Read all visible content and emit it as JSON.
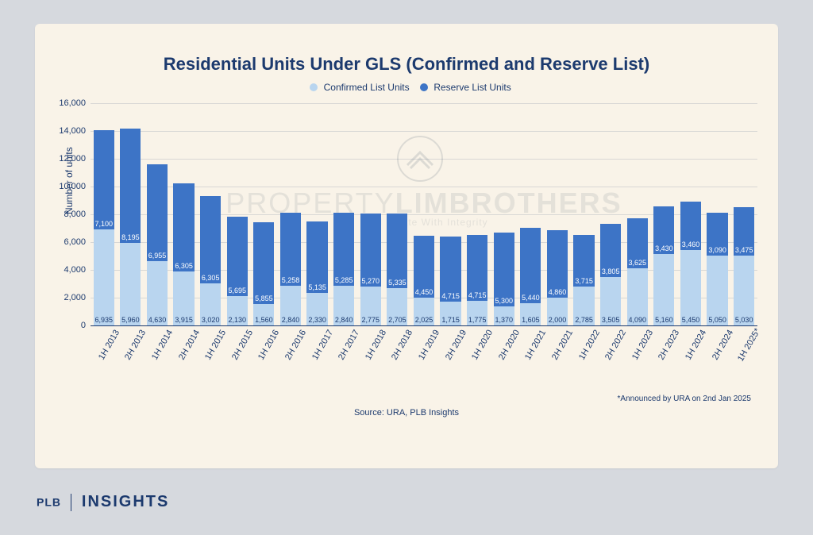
{
  "chart": {
    "type": "stacked-bar",
    "title": "Residential Units Under GLS (Confirmed and Reserve List)",
    "background_color": "#f9f3e8",
    "page_background_color": "#d6d9de",
    "title_color": "#1c3a6e",
    "title_fontsize": 22,
    "legend": {
      "series": [
        {
          "label": "Confirmed List Units",
          "color": "#b9d5ef"
        },
        {
          "label": "Reserve List Units",
          "color": "#3d74c6"
        }
      ],
      "fontsize": 12
    },
    "y_axis": {
      "title": "Number of units",
      "min": 0,
      "max": 16000,
      "tick_step": 2000,
      "tick_labels": [
        "0",
        "2,000",
        "4,000",
        "6,000",
        "8,000",
        "10,000",
        "12,000",
        "14,000",
        "16,000"
      ],
      "label_fontsize": 11,
      "gridline_color": "rgba(28,58,110,0.15)",
      "axis_color": "#1c3a6e"
    },
    "x_axis": {
      "rotation_deg": -60,
      "label_fontsize": 11
    },
    "series_colors": {
      "confirmed": "#b9d5ef",
      "reserve": "#3d74c6"
    },
    "bar_width_ratio": 0.78,
    "value_label_fontsize": 9,
    "categories": [
      "1H 2013",
      "2H 2013",
      "1H 2014",
      "2H 2014",
      "1H 2015",
      "2H 2015",
      "1H 2016",
      "2H 2016",
      "1H 2017",
      "2H 2017",
      "1H 2018",
      "2H 2018",
      "1H 2019",
      "2H 2019",
      "1H 2020",
      "2H 2020",
      "1H 2021",
      "2H 2021",
      "1H 2022",
      "2H 2022",
      "1H 2023",
      "2H 2023",
      "1H 2024",
      "2H 2024",
      "1H 2025*"
    ],
    "data": [
      {
        "confirmed": 6935,
        "reserve": 7100,
        "confirmed_label": "6,935",
        "reserve_label": "7,100"
      },
      {
        "confirmed": 5960,
        "reserve": 8195,
        "confirmed_label": "5,960",
        "reserve_label": "8,195"
      },
      {
        "confirmed": 4630,
        "reserve": 6955,
        "confirmed_label": "4,630",
        "reserve_label": "6,955"
      },
      {
        "confirmed": 3915,
        "reserve": 6305,
        "confirmed_label": "3,915",
        "reserve_label": "6,305"
      },
      {
        "confirmed": 3020,
        "reserve": 6305,
        "confirmed_label": "3,020",
        "reserve_label": "6,305"
      },
      {
        "confirmed": 2130,
        "reserve": 5695,
        "confirmed_label": "2,130",
        "reserve_label": "5,695"
      },
      {
        "confirmed": 1560,
        "reserve": 5855,
        "confirmed_label": "1,560",
        "reserve_label": "5,855"
      },
      {
        "confirmed": 2840,
        "reserve": 5258,
        "confirmed_label": "2,840",
        "reserve_label": "5,258"
      },
      {
        "confirmed": 2330,
        "reserve": 5135,
        "confirmed_label": "2,330",
        "reserve_label": "5,135"
      },
      {
        "confirmed": 2840,
        "reserve": 5285,
        "confirmed_label": "2,840",
        "reserve_label": "5,285"
      },
      {
        "confirmed": 2775,
        "reserve": 5270,
        "confirmed_label": "2,775",
        "reserve_label": "5,270"
      },
      {
        "confirmed": 2705,
        "reserve": 5335,
        "confirmed_label": "2,705",
        "reserve_label": "5,335"
      },
      {
        "confirmed": 2025,
        "reserve": 4450,
        "confirmed_label": "2,025",
        "reserve_label": "4,450"
      },
      {
        "confirmed": 1715,
        "reserve": 4715,
        "confirmed_label": "1,715",
        "reserve_label": "4,715"
      },
      {
        "confirmed": 1775,
        "reserve": 4715,
        "confirmed_label": "1,775",
        "reserve_label": "4,715"
      },
      {
        "confirmed": 1370,
        "reserve": 5300,
        "confirmed_label": "1,370",
        "reserve_label": "5,300"
      },
      {
        "confirmed": 1605,
        "reserve": 5440,
        "confirmed_label": "1,605",
        "reserve_label": "5,440"
      },
      {
        "confirmed": 2000,
        "reserve": 4860,
        "confirmed_label": "2,000",
        "reserve_label": "4,860"
      },
      {
        "confirmed": 2785,
        "reserve": 3715,
        "confirmed_label": "2,785",
        "reserve_label": "3,715"
      },
      {
        "confirmed": 3505,
        "reserve": 3805,
        "confirmed_label": "3,505",
        "reserve_label": "3,805"
      },
      {
        "confirmed": 4090,
        "reserve": 3625,
        "confirmed_label": "4,090",
        "reserve_label": "3,625"
      },
      {
        "confirmed": 5160,
        "reserve": 3430,
        "confirmed_label": "5,160",
        "reserve_label": "3,430"
      },
      {
        "confirmed": 5450,
        "reserve": 3460,
        "confirmed_label": "5,450",
        "reserve_label": "3,460"
      },
      {
        "confirmed": 5050,
        "reserve": 3090,
        "confirmed_label": "5,050",
        "reserve_label": "3,090"
      },
      {
        "confirmed": 5030,
        "reserve": 3475,
        "confirmed_label": "5,030",
        "reserve_label": "3,475"
      }
    ],
    "source": "Source: URA, PLB Insights",
    "footnote": "*Announced by URA on 2nd Jan 2025"
  },
  "watermark": {
    "line1_prefix": "PROPERTY",
    "line1_main": "LIMBROTHERS",
    "line2": "Real Estate With Integrity"
  },
  "brand": {
    "left": "PLB",
    "right": "INSIGHTS"
  }
}
